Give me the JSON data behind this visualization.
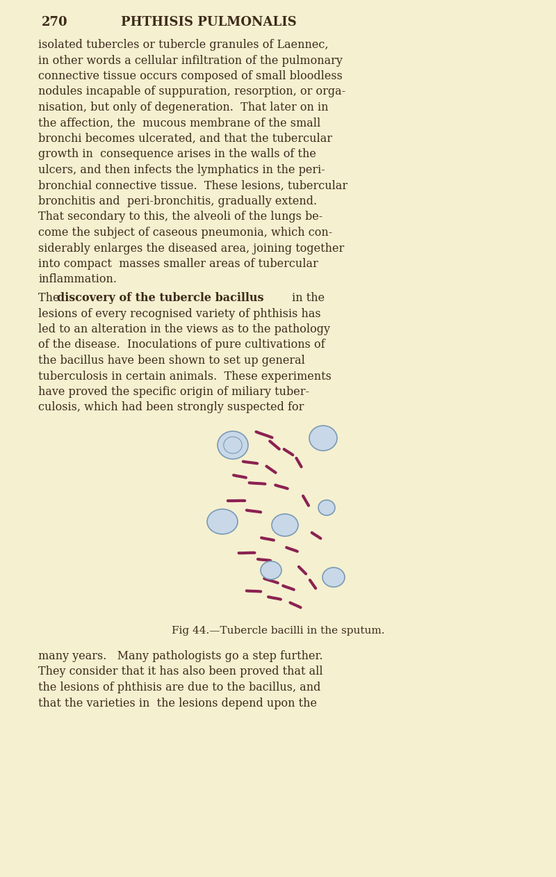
{
  "bg_color": "#f5f0d0",
  "page_bg": "#f0ead0",
  "text_color": "#3d2b1a",
  "header_num": "270",
  "header_title": "PHTHISIS PULMONALIS",
  "fig_caption": "Fig 44.—Tubercle bacilli in the sputum.",
  "body_text_top": [
    "isolated tubercles or tubercle granules of Laennec,",
    "in other words a cellular infiltration of the pulmonary",
    "connective tissue occurs composed of small bloodless",
    "nodules incapable of suppuration, resorption, or orga-",
    "nisation, but only of degeneration.  That later on in",
    "the affection, the  mucous membrane of the small",
    "bronchi becomes ulcerated, and that the tubercular",
    "growth in  consequence arises in the walls of the",
    "ulcers, and then infects the lymphatics in the peri-",
    "bronchial connective tissue.  These lesions, tubercular",
    "bronchitis and  peri-bronchitis, gradually extend.",
    "That secondary to this, the alveoli of the lungs be-",
    "come the subject of caseous pneumonia, which con-",
    "siderably enlarges the diseased area, joining together",
    "into compact  masses smaller areas of tubercular",
    "inflammation."
  ],
  "body_text_bold_start": "The  discovery of the tubercle bacillus in the",
  "body_text_mid": [
    "lesions of every recognised variety of phthisis has",
    "led to an alteration in the views as to the pathology",
    "of the disease.  Inoculations of pure cultivations of",
    "the bacillus have been shown to set up general",
    "tuberculosis in certain animals.  These experiments",
    "have proved the specific origin of miliary tuber-",
    "culosis, which had been strongly suspected for"
  ],
  "body_text_bottom": [
    "many years.   Many pathologists go a step further.",
    "They consider that it has also been proved that all",
    "the lesions of phthisis are due to the bacillus, and",
    "that the varieties in  the lesions depend upon the"
  ],
  "bacilli_color": "#8b2252",
  "cell_color": "#7a9ab5",
  "cell_fill": "#c8d8e8"
}
